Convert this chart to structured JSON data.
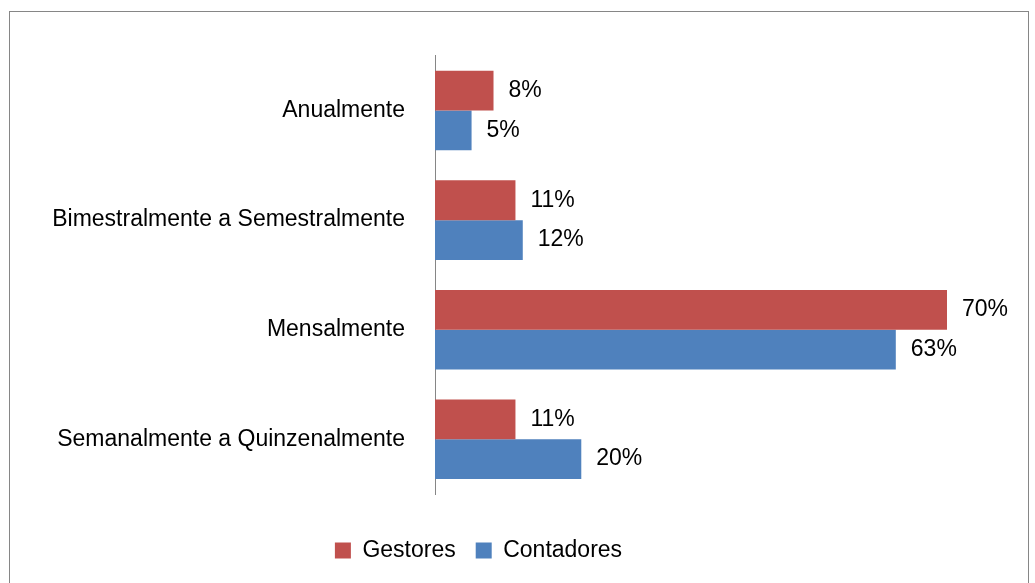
{
  "chart_data": {
    "type": "bar",
    "orientation": "horizontal",
    "categories": [
      "Anualmente",
      "Bimestralmente a Semestralmente",
      "Mensalmente",
      "Semanalmente a Quinzenalmente"
    ],
    "series": [
      {
        "name": "Gestores",
        "color": "#c0504d",
        "values": [
          8,
          11,
          70,
          11
        ],
        "value_labels": [
          "8%",
          "11%",
          "70%",
          "11%"
        ]
      },
      {
        "name": "Contadores",
        "color": "#4f81bd",
        "values": [
          5,
          12,
          63,
          20
        ],
        "value_labels": [
          "5%",
          "12%",
          "63%",
          "20%"
        ]
      }
    ],
    "legend": "bottom",
    "tick_labels": "y"
  }
}
